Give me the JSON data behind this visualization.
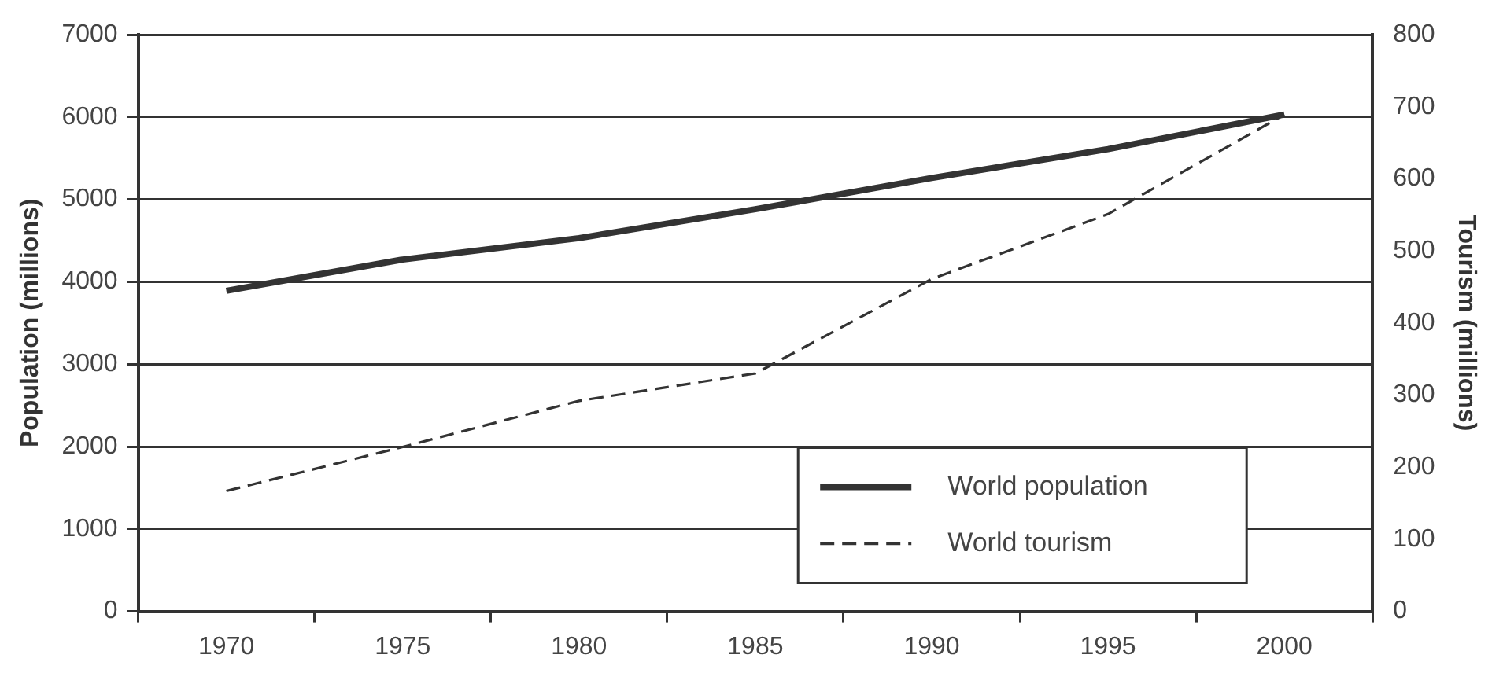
{
  "chart_data": {
    "type": "line",
    "categories": [
      "1970",
      "1975",
      "1980",
      "1985",
      "1990",
      "1995",
      "2000"
    ],
    "series": [
      {
        "name": "World population",
        "color": "#333333",
        "line_style": "solid",
        "values": [
          3890,
          4270,
          4530,
          4880,
          5260,
          5610,
          6030
        ]
      },
      {
        "name": "World tourism",
        "color": "#333333",
        "line_style": "dashed",
        "axis": "y2",
        "values": [
          167,
          228,
          292,
          330,
          461,
          551,
          689
        ]
      }
    ],
    "ylabel": "Population (millions)",
    "y2label": "Tourism (millions)",
    "ylim": [
      0,
      7000
    ],
    "yticks": [
      0,
      1000,
      2000,
      3000,
      4000,
      5000,
      6000,
      7000
    ],
    "y2lim": [
      0,
      800
    ],
    "y2ticks": [
      0,
      100,
      200,
      300,
      400,
      500,
      600,
      700,
      800
    ],
    "grid": "y",
    "legend": "bottom right",
    "marker": "none"
  }
}
